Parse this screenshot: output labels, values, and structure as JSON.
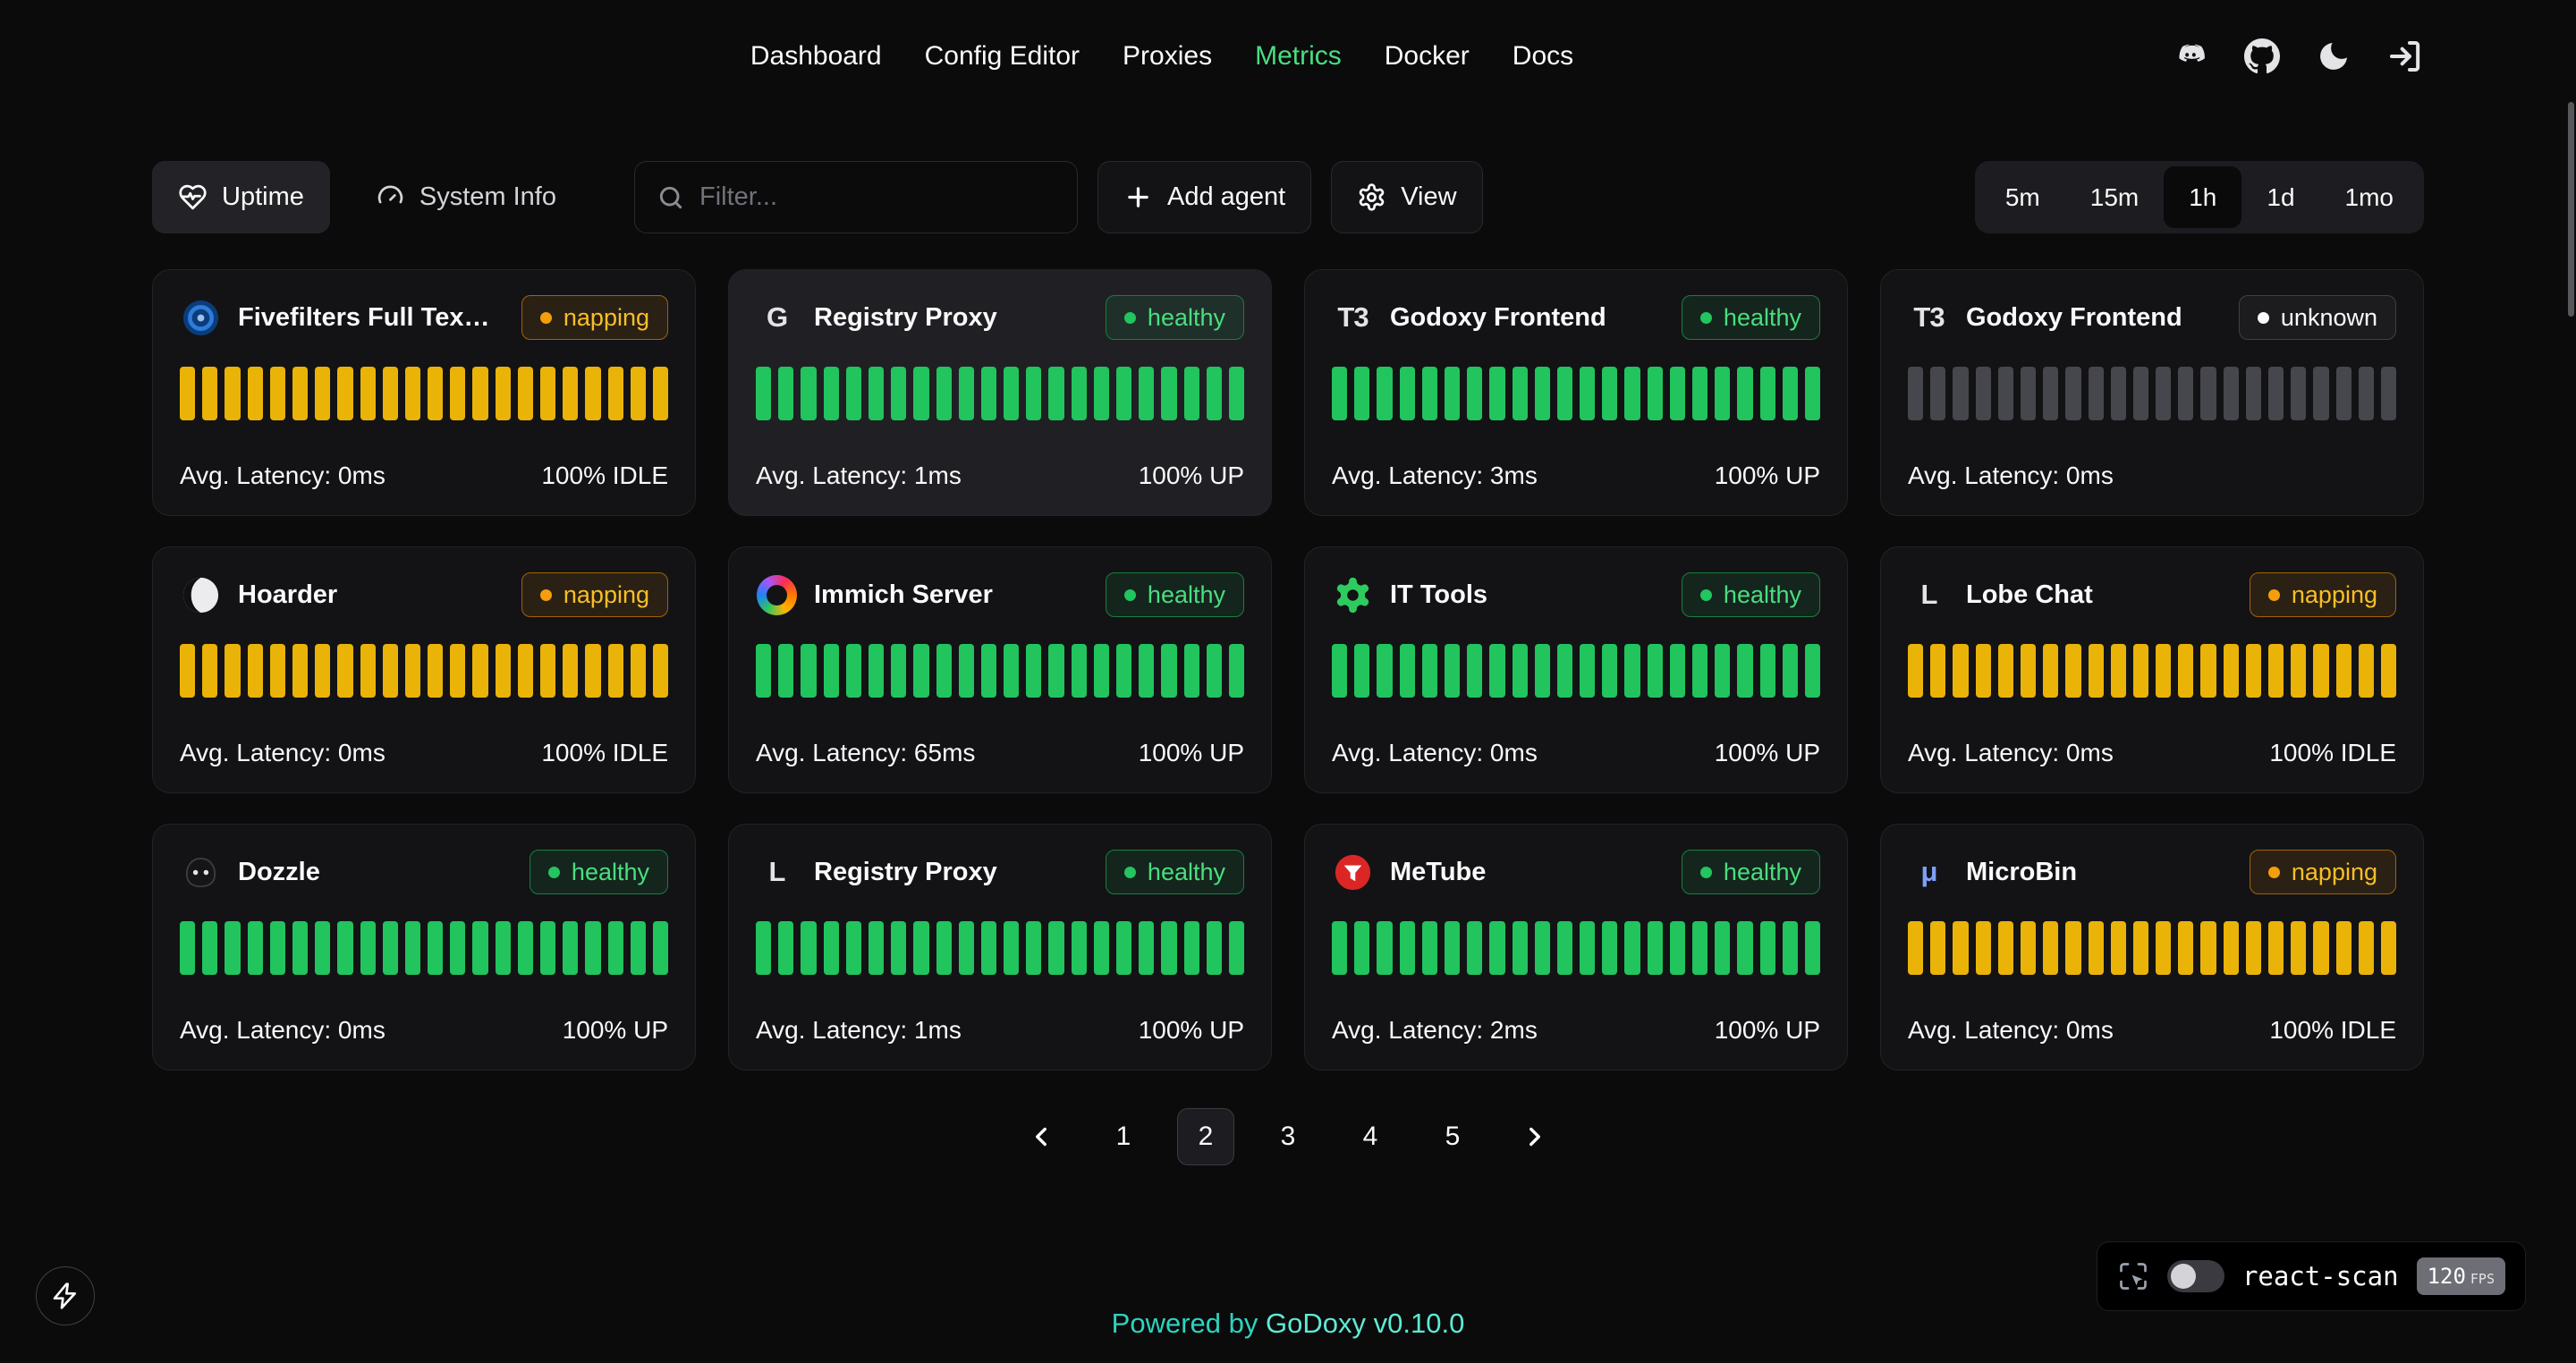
{
  "nav": {
    "items": [
      {
        "label": "Dashboard",
        "active": false
      },
      {
        "label": "Config Editor",
        "active": false
      },
      {
        "label": "Proxies",
        "active": false
      },
      {
        "label": "Metrics",
        "active": true
      },
      {
        "label": "Docker",
        "active": false
      },
      {
        "label": "Docs",
        "active": false
      }
    ],
    "icons": [
      "discord-icon",
      "github-icon",
      "dark-mode-icon",
      "logout-icon"
    ],
    "active_color": "#4ade80"
  },
  "toolbar": {
    "uptime_label": "Uptime",
    "system_info_label": "System Info",
    "filter_placeholder": "Filter...",
    "add_agent_label": "Add agent",
    "view_label": "View",
    "time_ranges": [
      {
        "label": "5m",
        "active": false
      },
      {
        "label": "15m",
        "active": false
      },
      {
        "label": "1h",
        "active": true
      },
      {
        "label": "1d",
        "active": false
      },
      {
        "label": "1mo",
        "active": false
      }
    ]
  },
  "status_colors": {
    "healthy": {
      "text": "#4ade80",
      "dot": "#22c55e",
      "border": "#15803d",
      "bg": "rgba(34,197,94,0.10)",
      "bar": "#21c45d"
    },
    "napping": {
      "text": "#fbbf24",
      "dot": "#f59e0b",
      "border": "#a16207",
      "bg": "rgba(245,158,11,0.10)",
      "bar": "#eab308"
    },
    "unknown": {
      "text": "#fafafa",
      "dot": "#fafafa",
      "border": "#3f3f46",
      "bg": "rgba(255,255,255,0.04)",
      "bar": "#46464d"
    }
  },
  "uptime_bars": {
    "count": 22
  },
  "cards": [
    {
      "name": "Fivefilters Full Tex…",
      "icon": "fivefilters-icon",
      "status": "napping",
      "latency": "Avg. Latency: 0ms",
      "uptime": "100% IDLE",
      "highlighted": false
    },
    {
      "name": "Registry Proxy",
      "icon": "registry-proxy-icon",
      "icon_text": "G",
      "status": "healthy",
      "latency": "Avg. Latency: 1ms",
      "uptime": "100% UP",
      "highlighted": true
    },
    {
      "name": "Godoxy Frontend",
      "icon": "godoxy-frontend-icon",
      "icon_text": "T3",
      "status": "healthy",
      "latency": "Avg. Latency: 3ms",
      "uptime": "100% UP",
      "highlighted": false
    },
    {
      "name": "Godoxy Frontend",
      "icon": "godoxy-frontend-icon",
      "icon_text": "T3",
      "status": "unknown",
      "latency": "Avg. Latency: 0ms",
      "uptime": "",
      "highlighted": false
    },
    {
      "name": "Hoarder",
      "icon": "hoarder-icon",
      "status": "napping",
      "latency": "Avg. Latency: 0ms",
      "uptime": "100% IDLE",
      "highlighted": false
    },
    {
      "name": "Immich Server",
      "icon": "immich-icon",
      "status": "healthy",
      "latency": "Avg. Latency: 65ms",
      "uptime": "100% UP",
      "highlighted": false
    },
    {
      "name": "IT Tools",
      "icon": "it-tools-icon",
      "status": "healthy",
      "latency": "Avg. Latency: 0ms",
      "uptime": "100% UP",
      "highlighted": false
    },
    {
      "name": "Lobe Chat",
      "icon": "lobe-chat-icon",
      "icon_text": "L",
      "status": "napping",
      "latency": "Avg. Latency: 0ms",
      "uptime": "100% IDLE",
      "highlighted": false
    },
    {
      "name": "Dozzle",
      "icon": "dozzle-icon",
      "status": "healthy",
      "latency": "Avg. Latency: 0ms",
      "uptime": "100% UP",
      "highlighted": false
    },
    {
      "name": "Registry Proxy",
      "icon": "registry-proxy-icon",
      "icon_text": "L",
      "status": "healthy",
      "latency": "Avg. Latency: 1ms",
      "uptime": "100% UP",
      "highlighted": false
    },
    {
      "name": "MeTube",
      "icon": "metube-icon",
      "status": "healthy",
      "latency": "Avg. Latency: 2ms",
      "uptime": "100% UP",
      "highlighted": false
    },
    {
      "name": "MicroBin",
      "icon": "microbin-icon",
      "icon_text": "μ",
      "icon_color": "#7ba2f7",
      "status": "napping",
      "latency": "Avg. Latency: 0ms",
      "uptime": "100% IDLE",
      "highlighted": false
    }
  ],
  "pagination": {
    "pages": [
      "1",
      "2",
      "3",
      "4",
      "5"
    ],
    "active_page": "2"
  },
  "footer": {
    "powered_by": "Powered by",
    "brand": "GoDoxy",
    "version": "v0.10.0"
  },
  "react_scan": {
    "label": "react-scan",
    "fps": "120",
    "fps_unit": "FPS"
  }
}
